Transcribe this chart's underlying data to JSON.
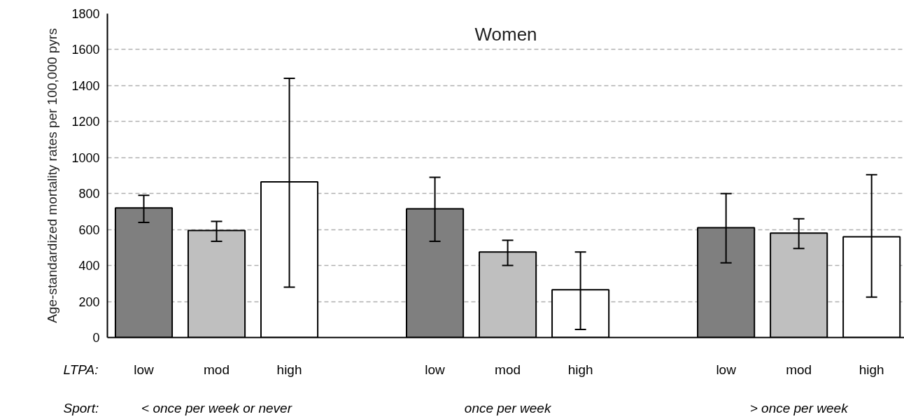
{
  "chart_data": {
    "type": "bar",
    "title": "Women",
    "ylabel": "Age-standardized mortality rates per 100,000 pyrs",
    "categories": [
      "low",
      "mod",
      "high",
      null,
      "low",
      "mod",
      "high",
      null,
      "low",
      "mod",
      "high"
    ],
    "values": [
      720,
      595,
      865,
      null,
      715,
      475,
      265,
      null,
      610,
      580,
      560
    ],
    "colors": [
      "#7f7f7f",
      "#bfbfbf",
      "#ffffff",
      null,
      "#7f7f7f",
      "#bfbfbf",
      "#ffffff",
      null,
      "#7f7f7f",
      "#bfbfbf",
      "#ffffff"
    ],
    "errors": [
      [
        640,
        790
      ],
      [
        535,
        645
      ],
      [
        280,
        1440
      ],
      null,
      [
        535,
        890
      ],
      [
        400,
        540
      ],
      [
        45,
        475
      ],
      null,
      [
        415,
        800
      ],
      [
        495,
        660
      ],
      [
        225,
        905
      ]
    ],
    "ylim": [
      0,
      1800
    ],
    "yticks": [
      0,
      200,
      400,
      600,
      800,
      1000,
      1200,
      1400,
      1600,
      1800
    ],
    "grid": "y",
    "annotations": [
      "LTPA:",
      "Sport:",
      "< once per week or never",
      "once per week",
      "> once per week"
    ]
  }
}
